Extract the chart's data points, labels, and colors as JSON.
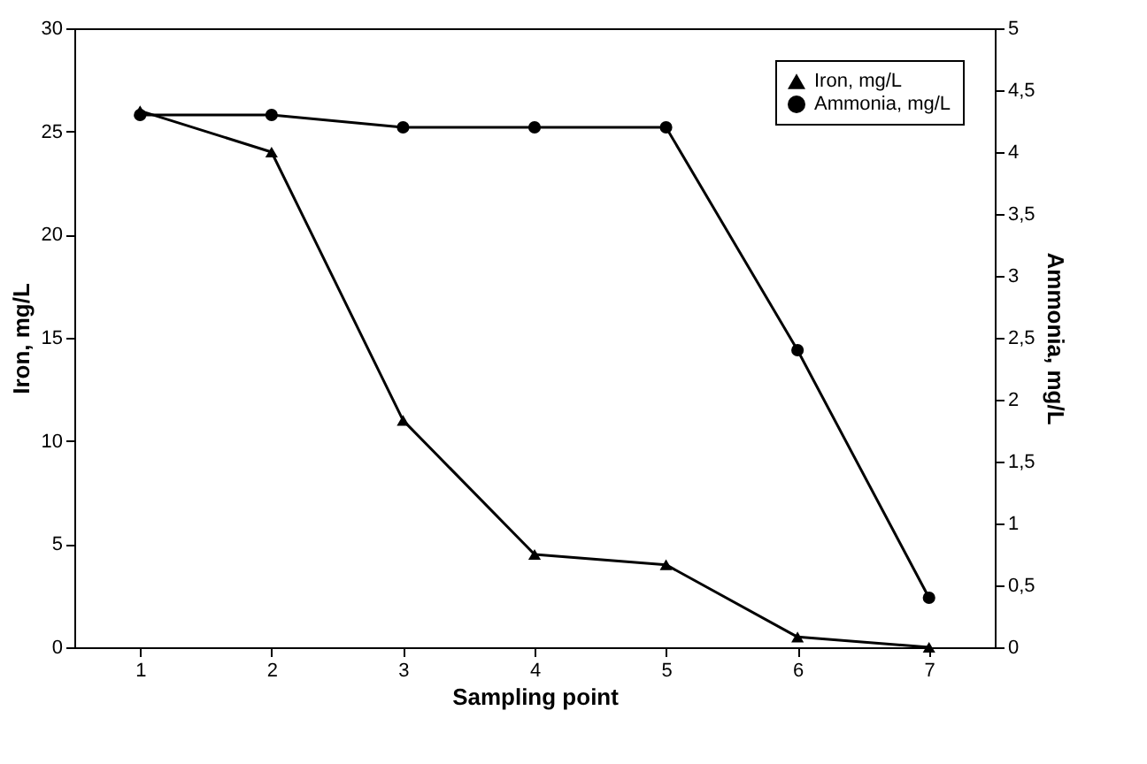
{
  "chart_data": {
    "type": "line",
    "xlabel": "Sampling point",
    "ylabel": "Iron, mg/L",
    "y2label": "Ammonia, mg/L",
    "categories": [
      "1",
      "2",
      "3",
      "4",
      "5",
      "6",
      "7"
    ],
    "series": [
      {
        "name": "Iron, mg/L",
        "color": "#000000",
        "marker": "triangle",
        "values": [
          26,
          24,
          11,
          4.5,
          4,
          0.5,
          0
        ]
      },
      {
        "name": "Ammonia, mg/L",
        "color": "#000000",
        "marker": "circle",
        "axis": "y2",
        "values": [
          4.3,
          4.3,
          4.2,
          4.2,
          4.2,
          2.4,
          0.4
        ]
      }
    ],
    "ylim": [
      0,
      30
    ],
    "yticks": [
      0,
      5,
      10,
      15,
      20,
      25,
      30
    ],
    "y2lim": [
      0,
      5
    ],
    "y2ticks": [
      0,
      {
        "value": 0.5,
        "label": "0,5"
      },
      1,
      {
        "value": 1.5,
        "label": "1,5"
      },
      2,
      {
        "value": 2.5,
        "label": "2,5"
      },
      3,
      {
        "value": 3.5,
        "label": "3,5"
      },
      4,
      {
        "value": 4.5,
        "label": "4,5"
      },
      5
    ],
    "grid": false,
    "legend": "top right",
    "line_style": "solid"
  }
}
